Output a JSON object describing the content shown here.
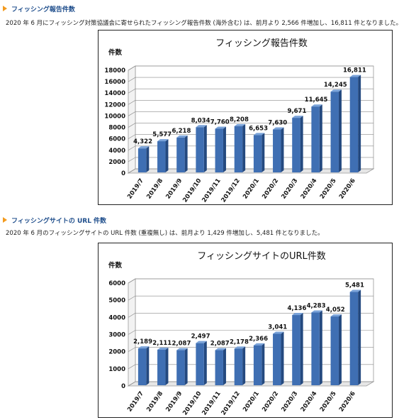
{
  "sections": [
    {
      "heading": "フィッシング報告件数",
      "description": "2020 年 6 月にフィッシング対策協議会に寄せられたフィッシング報告件数 (海外含む) は、前月より 2,566 件増加し、16,811 件となりました。"
    },
    {
      "heading": "フィッシングサイトの URL 件数",
      "description": "2020 年 6 月のフィッシングサイトの URL 件数 (重複無し) は、前月より 1,429 件増加し、5,481 件となりました。"
    }
  ],
  "colors": {
    "bar": "#3f6fb3",
    "bar_top": "#7aa3d9",
    "bar_side": "#24497f",
    "heading": "#1f4e8c",
    "arrow": "#f39a1e"
  },
  "chart_data": [
    {
      "type": "bar",
      "title": "フィッシング報告件数",
      "ylabel": "件数",
      "categories": [
        "2019/7",
        "2019/8",
        "2019/9",
        "2019/10",
        "2019/11",
        "2019/12",
        "2020/1",
        "2020/2",
        "2020/3",
        "2020/4",
        "2020/5",
        "2020/6"
      ],
      "values": [
        4322,
        5577,
        6218,
        8034,
        7760,
        8208,
        6653,
        7630,
        9671,
        11645,
        14245,
        16811
      ],
      "data_labels": [
        "4,322",
        "5,577",
        "6,218",
        "8,034",
        "7,760",
        "8,208",
        "6,653",
        "7,630",
        "9,671",
        "11,645",
        "14,245",
        "16,811"
      ],
      "ylim": [
        0,
        18000
      ],
      "yticks": [
        0,
        2000,
        4000,
        6000,
        8000,
        10000,
        12000,
        14000,
        16000,
        18000
      ],
      "grid": true
    },
    {
      "type": "bar",
      "title": "フィッシングサイトのURL件数",
      "ylabel": "件数",
      "categories": [
        "2019/7",
        "2019/8",
        "2019/9",
        "2019/10",
        "2019/11",
        "2019/12",
        "2020/1",
        "2020/2",
        "2020/3",
        "2020/4",
        "2020/5",
        "2020/6"
      ],
      "values": [
        2189,
        2111,
        2087,
        2497,
        2087,
        2178,
        2366,
        3041,
        4136,
        4283,
        4052,
        5481
      ],
      "data_labels": [
        "2,189",
        "2,111",
        "2,087",
        "2,497",
        "2,087",
        "2,178",
        "2,366",
        "3,041",
        "4,136",
        "4,283",
        "4,052",
        "5,481"
      ],
      "ylim": [
        0,
        6000
      ],
      "yticks": [
        0,
        1000,
        2000,
        3000,
        4000,
        5000,
        6000
      ],
      "grid": true
    }
  ]
}
